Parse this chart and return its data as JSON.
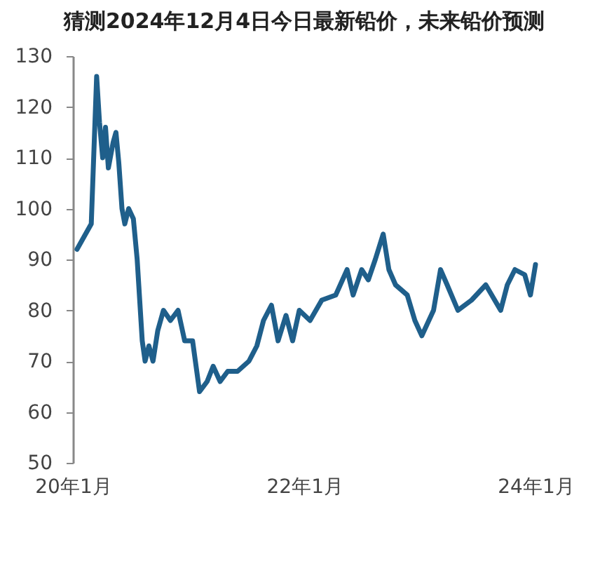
{
  "chart_data": {
    "type": "line",
    "title": "猜测2024年12月4日今日最新铅价，未来铅价预测",
    "x": [
      "2020-01-14",
      "2020-02-28",
      "2020-03-16",
      "2020-03-25",
      "2020-04-04",
      "2020-04-13",
      "2020-04-22",
      "2020-05-07",
      "2020-05-16",
      "2020-05-25",
      "2020-06-04",
      "2020-06-13",
      "2020-06-25",
      "2020-07-10",
      "2020-07-22",
      "2020-08-07",
      "2020-08-16",
      "2020-08-28",
      "2020-09-10",
      "2020-09-25",
      "2020-10-13",
      "2020-11-04",
      "2020-11-28",
      "2020-12-19",
      "2021-01-13",
      "2021-02-04",
      "2021-02-28",
      "2021-03-19",
      "2021-04-10",
      "2021-05-04",
      "2021-06-04",
      "2021-07-10",
      "2021-08-04",
      "2021-08-25",
      "2021-09-19",
      "2021-10-10",
      "2021-11-04",
      "2021-11-25",
      "2021-12-16",
      "2022-01-19",
      "2022-02-25",
      "2022-04-10",
      "2022-05-16",
      "2022-06-04",
      "2022-07-01",
      "2022-07-22",
      "2022-08-13",
      "2022-09-07",
      "2022-09-25",
      "2022-10-16",
      "2022-11-22",
      "2022-12-16",
      "2023-01-07",
      "2023-02-13",
      "2023-03-07",
      "2023-03-28",
      "2023-05-01",
      "2023-06-13",
      "2023-07-28",
      "2023-09-13",
      "2023-10-04",
      "2023-10-28",
      "2023-11-28",
      "2023-12-16",
      "2024-01-01"
    ],
    "series": [
      {
        "color": "#1f5f8b",
        "values": [
          92,
          97,
          126,
          117,
          110,
          116,
          108,
          113,
          115,
          109,
          100,
          97,
          100,
          98,
          90,
          74,
          70,
          73,
          70,
          76,
          80,
          78,
          80,
          74,
          74,
          64,
          66,
          69,
          66,
          68,
          68,
          70,
          73,
          78,
          81,
          74,
          79,
          74,
          80,
          78,
          82,
          83,
          88,
          83,
          88,
          86,
          90,
          95,
          88,
          85,
          83,
          78,
          75,
          80,
          88,
          85,
          80,
          82,
          85,
          80,
          85,
          88,
          87,
          83,
          89
        ]
      }
    ],
    "xlim": [
      "2020-01",
      "2024-01"
    ],
    "xticks": [
      {
        "value": "2020-01",
        "label": "20年1月"
      },
      {
        "value": "2022-01",
        "label": "22年1月"
      },
      {
        "value": "2024-01",
        "label": "24年1月"
      }
    ],
    "ylim": [
      50,
      130
    ],
    "yticks": [
      50,
      60,
      70,
      80,
      90,
      100,
      110,
      120,
      130
    ],
    "grid": false,
    "legend": false
  }
}
